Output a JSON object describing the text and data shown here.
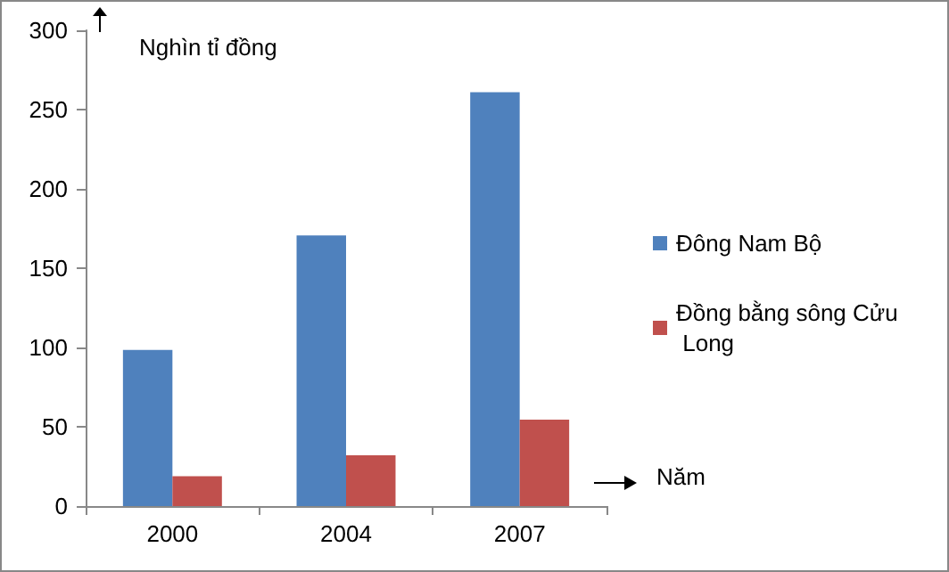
{
  "chart_data": {
    "type": "bar",
    "ylabel": "Nghìn tỉ đồng",
    "xlabel": "Năm",
    "categories": [
      "2000",
      "2004",
      "2007"
    ],
    "series": [
      {
        "name": "Đông Nam Bộ",
        "color": "#4f81bd",
        "values": [
          98.5,
          170.7,
          261
        ]
      },
      {
        "name": "Đồng bằng sông Cửu Long",
        "color": "#c0504d",
        "values": [
          18.8,
          32,
          54.5
        ]
      }
    ],
    "ylim": [
      0,
      300
    ],
    "yticks": [
      0,
      50,
      100,
      150,
      200,
      250,
      300
    ],
    "grid": false,
    "legend": "right"
  }
}
